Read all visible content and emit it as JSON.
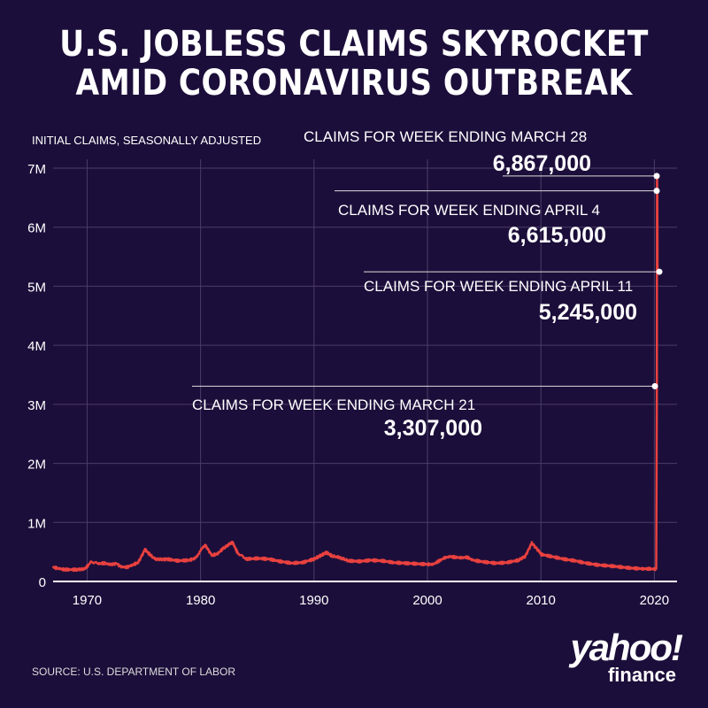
{
  "title_lines": [
    "U.S. JOBLESS CLAIMS SKYROCKET",
    "AMID CORONAVIRUS OUTBREAK"
  ],
  "source": "SOURCE:  U.S. DEPARTMENT OF LABOR",
  "logo": {
    "main": "yahoo!",
    "sub": "finance"
  },
  "colors": {
    "background": "#1c0e3a",
    "line": "#e8413f",
    "grid": "#4a3d66",
    "text": "#ffffff"
  },
  "chart_data": {
    "type": "line",
    "title": "U.S. JOBLESS CLAIMS SKYROCKET AMID CORONAVIRUS OUTBREAK",
    "ylabel": "INITIAL CLAIMS, SEASONALLY ADJUSTED",
    "xlabel": "",
    "xlim": [
      1967,
      2022
    ],
    "ylim": [
      0,
      7000000
    ],
    "grid": true,
    "xticks": [
      {
        "v": 1970,
        "label": "1970"
      },
      {
        "v": 1980,
        "label": "1980"
      },
      {
        "v": 1990,
        "label": "1990"
      },
      {
        "v": 2000,
        "label": "2000"
      },
      {
        "v": 2010,
        "label": "2010"
      },
      {
        "v": 2020,
        "label": "2020"
      }
    ],
    "yticks": [
      {
        "v": 0,
        "label": "0"
      },
      {
        "v": 1000000,
        "label": "1M"
      },
      {
        "v": 2000000,
        "label": "2M"
      },
      {
        "v": 3000000,
        "label": "3M"
      },
      {
        "v": 4000000,
        "label": "4M"
      },
      {
        "v": 5000000,
        "label": "5M"
      },
      {
        "v": 6000000,
        "label": "6M"
      },
      {
        "v": 7000000,
        "label": "7M"
      }
    ],
    "x": [
      1967,
      1967.5,
      1968,
      1969,
      1969.8,
      1970.3,
      1971,
      1971.5,
      1972,
      1972.6,
      1973,
      1973.5,
      1974,
      1974.5,
      1975.1,
      1975.6,
      1976,
      1976.8,
      1977,
      1978,
      1979,
      1979.5,
      1980.4,
      1981,
      1981.5,
      1982,
      1982.8,
      1983.3,
      1984,
      1985,
      1986,
      1987,
      1988,
      1989,
      1990,
      1991.1,
      1991.6,
      1992,
      1992.6,
      1993,
      1994,
      1995,
      1996,
      1997,
      1998,
      1999,
      2000,
      2000.5,
      2001.5,
      2002,
      2003,
      2003.5,
      2004,
      2005,
      2006,
      2007,
      2008,
      2008.6,
      2009.2,
      2009.8,
      2010,
      2011,
      2012,
      2013,
      2014,
      2015,
      2016,
      2017,
      2018,
      2019,
      2020.17,
      2020.22,
      2020.24,
      2020.26,
      2020.28
    ],
    "values": [
      240,
      220,
      200,
      200,
      210,
      320,
      300,
      310,
      290,
      300,
      250,
      240,
      280,
      320,
      540,
      440,
      380,
      370,
      380,
      350,
      360,
      390,
      620,
      440,
      470,
      560,
      670,
      470,
      380,
      390,
      380,
      340,
      310,
      320,
      380,
      490,
      430,
      420,
      380,
      350,
      340,
      360,
      350,
      320,
      310,
      300,
      290,
      290,
      400,
      420,
      400,
      410,
      360,
      330,
      310,
      320,
      360,
      420,
      650,
      520,
      460,
      420,
      380,
      350,
      310,
      280,
      265,
      245,
      225,
      215,
      211,
      3307,
      6867,
      6615,
      5245
    ],
    "value_scale": 1000,
    "annotations": [
      {
        "label": "CLAIMS FOR WEEK ENDING MARCH 28",
        "value_text": "6,867,000",
        "value": 6867000
      },
      {
        "label": "CLAIMS FOR WEEK ENDING APRIL 4",
        "value_text": "6,615,000",
        "value": 6615000
      },
      {
        "label": "CLAIMS FOR WEEK ENDING APRIL 11",
        "value_text": "5,245,000",
        "value": 5245000
      },
      {
        "label": "CLAIMS FOR WEEK ENDING MARCH 21",
        "value_text": "3,307,000",
        "value": 3307000
      }
    ]
  }
}
